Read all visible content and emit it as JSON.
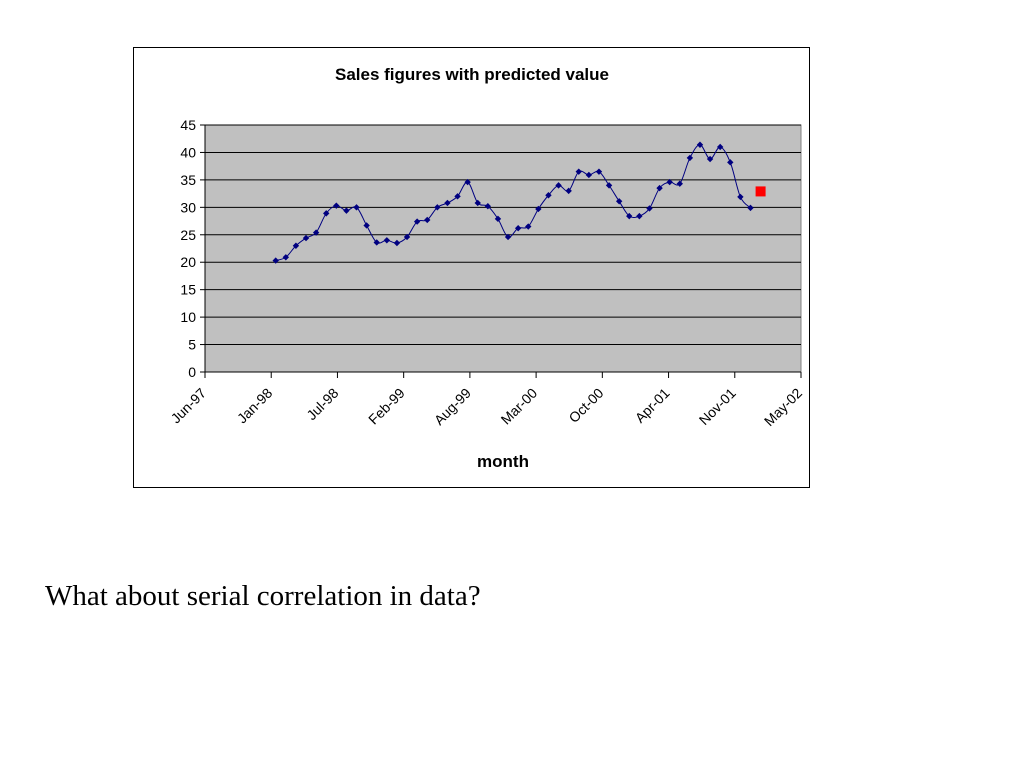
{
  "chart_data": {
    "type": "line",
    "title": "Sales figures with predicted value",
    "xlabel": "month",
    "ylabel": "",
    "ylim": [
      0,
      45
    ],
    "yticks": [
      0,
      5,
      10,
      15,
      20,
      25,
      30,
      35,
      40,
      45
    ],
    "xticks": [
      "Jun-97",
      "Jan-98",
      "Jul-98",
      "Feb-99",
      "Aug-99",
      "Mar-00",
      "Oct-00",
      "Apr-01",
      "Nov-01",
      "May-02"
    ],
    "xlim": [
      "1997-06",
      "2002-05"
    ],
    "grid": true,
    "plot_background": "#c0c0c0",
    "series": [
      {
        "color": "#000080",
        "marker": "diamond",
        "x": [
          "1998-01",
          "1998-02",
          "1998-03",
          "1998-04",
          "1998-05",
          "1998-06",
          "1998-07",
          "1998-08",
          "1998-09",
          "1998-10",
          "1998-11",
          "1998-12",
          "1999-01",
          "1999-02",
          "1999-03",
          "1999-04",
          "1999-05",
          "1999-06",
          "1999-07",
          "1999-08",
          "1999-09",
          "1999-10",
          "1999-11",
          "1999-12",
          "2000-01",
          "2000-02",
          "2000-03",
          "2000-04",
          "2000-05",
          "2000-06",
          "2000-07",
          "2000-08",
          "2000-09",
          "2000-10",
          "2000-11",
          "2000-12",
          "2001-01",
          "2001-02",
          "2001-03",
          "2001-04",
          "2001-05",
          "2001-06",
          "2001-07",
          "2001-08",
          "2001-09",
          "2001-10",
          "2001-11",
          "2001-12"
        ],
        "y": [
          20.3,
          20.9,
          23.0,
          24.4,
          25.4,
          28.9,
          30.3,
          29.4,
          30.0,
          26.7,
          23.6,
          24.0,
          23.5,
          24.6,
          27.4,
          27.7,
          30.0,
          30.8,
          32.0,
          34.6,
          30.8,
          30.2,
          27.9,
          24.6,
          26.2,
          26.5,
          29.7,
          32.2,
          34.0,
          33.0,
          36.5,
          35.9,
          36.5,
          34.0,
          31.1,
          28.4,
          28.4,
          29.8,
          33.5,
          34.6,
          34.3,
          39.0,
          41.4,
          38.8,
          41.0,
          38.2,
          31.9,
          29.9
        ]
      },
      {
        "color": "#ff0000",
        "marker": "square",
        "x": [
          "2002-01"
        ],
        "y": [
          32.9
        ]
      }
    ]
  },
  "caption": "What about serial correlation in data?"
}
